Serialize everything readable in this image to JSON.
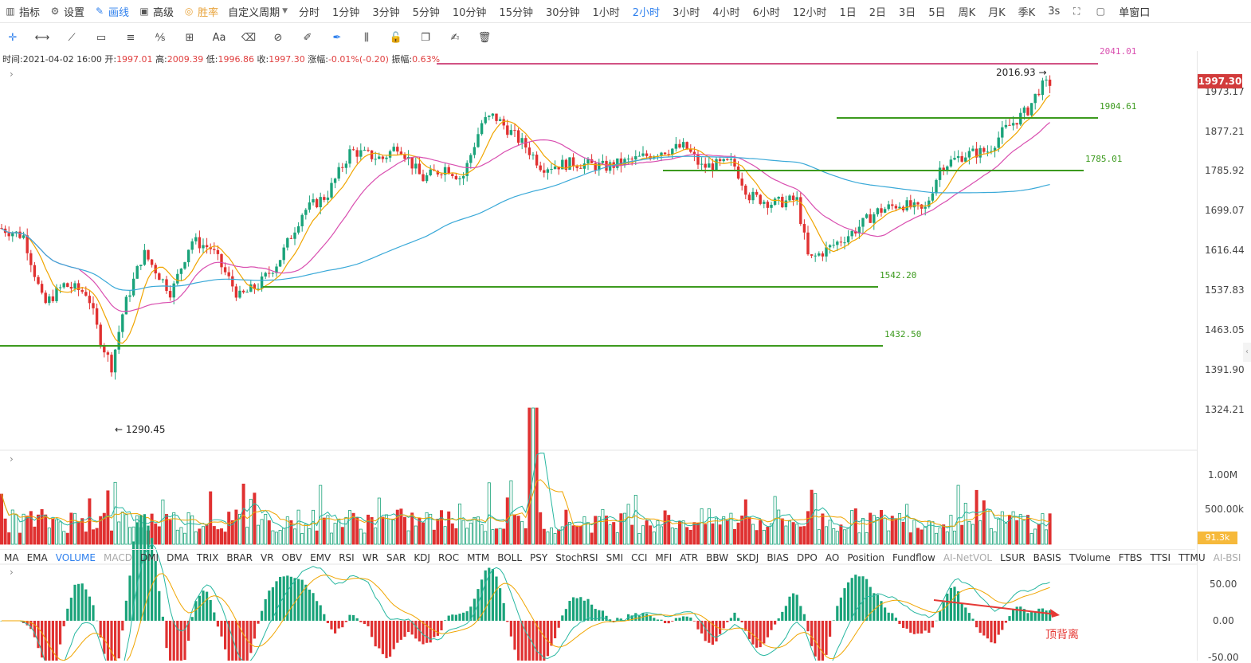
{
  "toolbar": {
    "items": [
      {
        "icon": "bar-chart-icon",
        "label": "指标"
      },
      {
        "icon": "gear-icon",
        "label": "设置"
      },
      {
        "icon": "pencil-icon",
        "label": "画线"
      },
      {
        "icon": "briefcase-icon",
        "label": "高级"
      },
      {
        "icon": "percent-icon",
        "label": "胜率"
      }
    ],
    "custom_period": "自定义周期",
    "periods": [
      "分时",
      "1分钟",
      "3分钟",
      "5分钟",
      "10分钟",
      "15分钟",
      "30分钟",
      "1小时",
      "2小时",
      "3小时",
      "4小时",
      "6小时",
      "12小时",
      "1日",
      "2日",
      "3日",
      "5日",
      "周K",
      "月K",
      "季K",
      "3s"
    ],
    "active_period": "2小时",
    "single_window": "单窗口"
  },
  "draw_tools": [
    "crosshair-icon",
    "horizontal-line-icon",
    "ray-line-icon",
    "rectangle-icon",
    "parallel-lines-icon",
    "fib-icon",
    "measure-icon",
    "text-icon",
    "eraser-icon",
    "magnet-icon",
    "ruler-icon",
    "pen-icon",
    "candle-icon",
    "lock-icon",
    "copy-icon",
    "edit-icon",
    "trash-icon"
  ],
  "info": {
    "time_label": "时间:",
    "time": "2021-04-02 16:00",
    "open_label": "开:",
    "open": "1997.01",
    "high_label": "高:",
    "high": "2009.39",
    "low_label": "低:",
    "low": "1996.86",
    "close_label": "收:",
    "close": "1997.30",
    "change_label": "涨幅:",
    "change": "-0.01%(-0.20)",
    "amplitude_label": "振幅:",
    "amplitude": "0.63%"
  },
  "price_axis": [
    "1973.17",
    "1877.21",
    "1785.92",
    "1699.07",
    "1616.44",
    "1537.83",
    "1463.05",
    "1391.90",
    "1324.21"
  ],
  "current_price": "1997.30",
  "levels": [
    "2041.01",
    "1904.61",
    "1785.01",
    "1542.20",
    "1432.50"
  ],
  "annotations": {
    "high_point": "2016.93",
    "low_point": "1290.45"
  },
  "volume_axis": [
    "1.00M",
    "500.00k"
  ],
  "current_volume": "91.3k",
  "indicators": [
    "MA",
    "EMA",
    "VOLUME",
    "MACD",
    "DMI",
    "DMA",
    "TRIX",
    "BRAR",
    "VR",
    "OBV",
    "EMV",
    "RSI",
    "WR",
    "SAR",
    "KDJ",
    "ROC",
    "MTM",
    "BOLL",
    "PSY",
    "StochRSI",
    "SMI",
    "CCI",
    "MFI",
    "ATR",
    "BBW",
    "SKDJ",
    "BIAS",
    "DPO",
    "AO",
    "Position",
    "Fundflow",
    "AI-NetVOL",
    "LSUR",
    "BASIS",
    "TVolume",
    "FTBS",
    "TTSI",
    "TTMU",
    "AI-BSI"
  ],
  "active_indicator": "VOLUME",
  "dim_indicators": [
    "MACD",
    "AI-NetVOL",
    "AI-BSI"
  ],
  "macd_axis": [
    "50.00",
    "0.00",
    "-50.00"
  ],
  "divergence_label": "顶背离",
  "colors": {
    "up": "#1aa37a",
    "down": "#e03131",
    "ma_short": "#f0a500",
    "ma_mid": "#d94fb0",
    "ma_long": "#3aa9d8",
    "level": "#3c9a1e",
    "accent": "#2f80ed"
  }
}
